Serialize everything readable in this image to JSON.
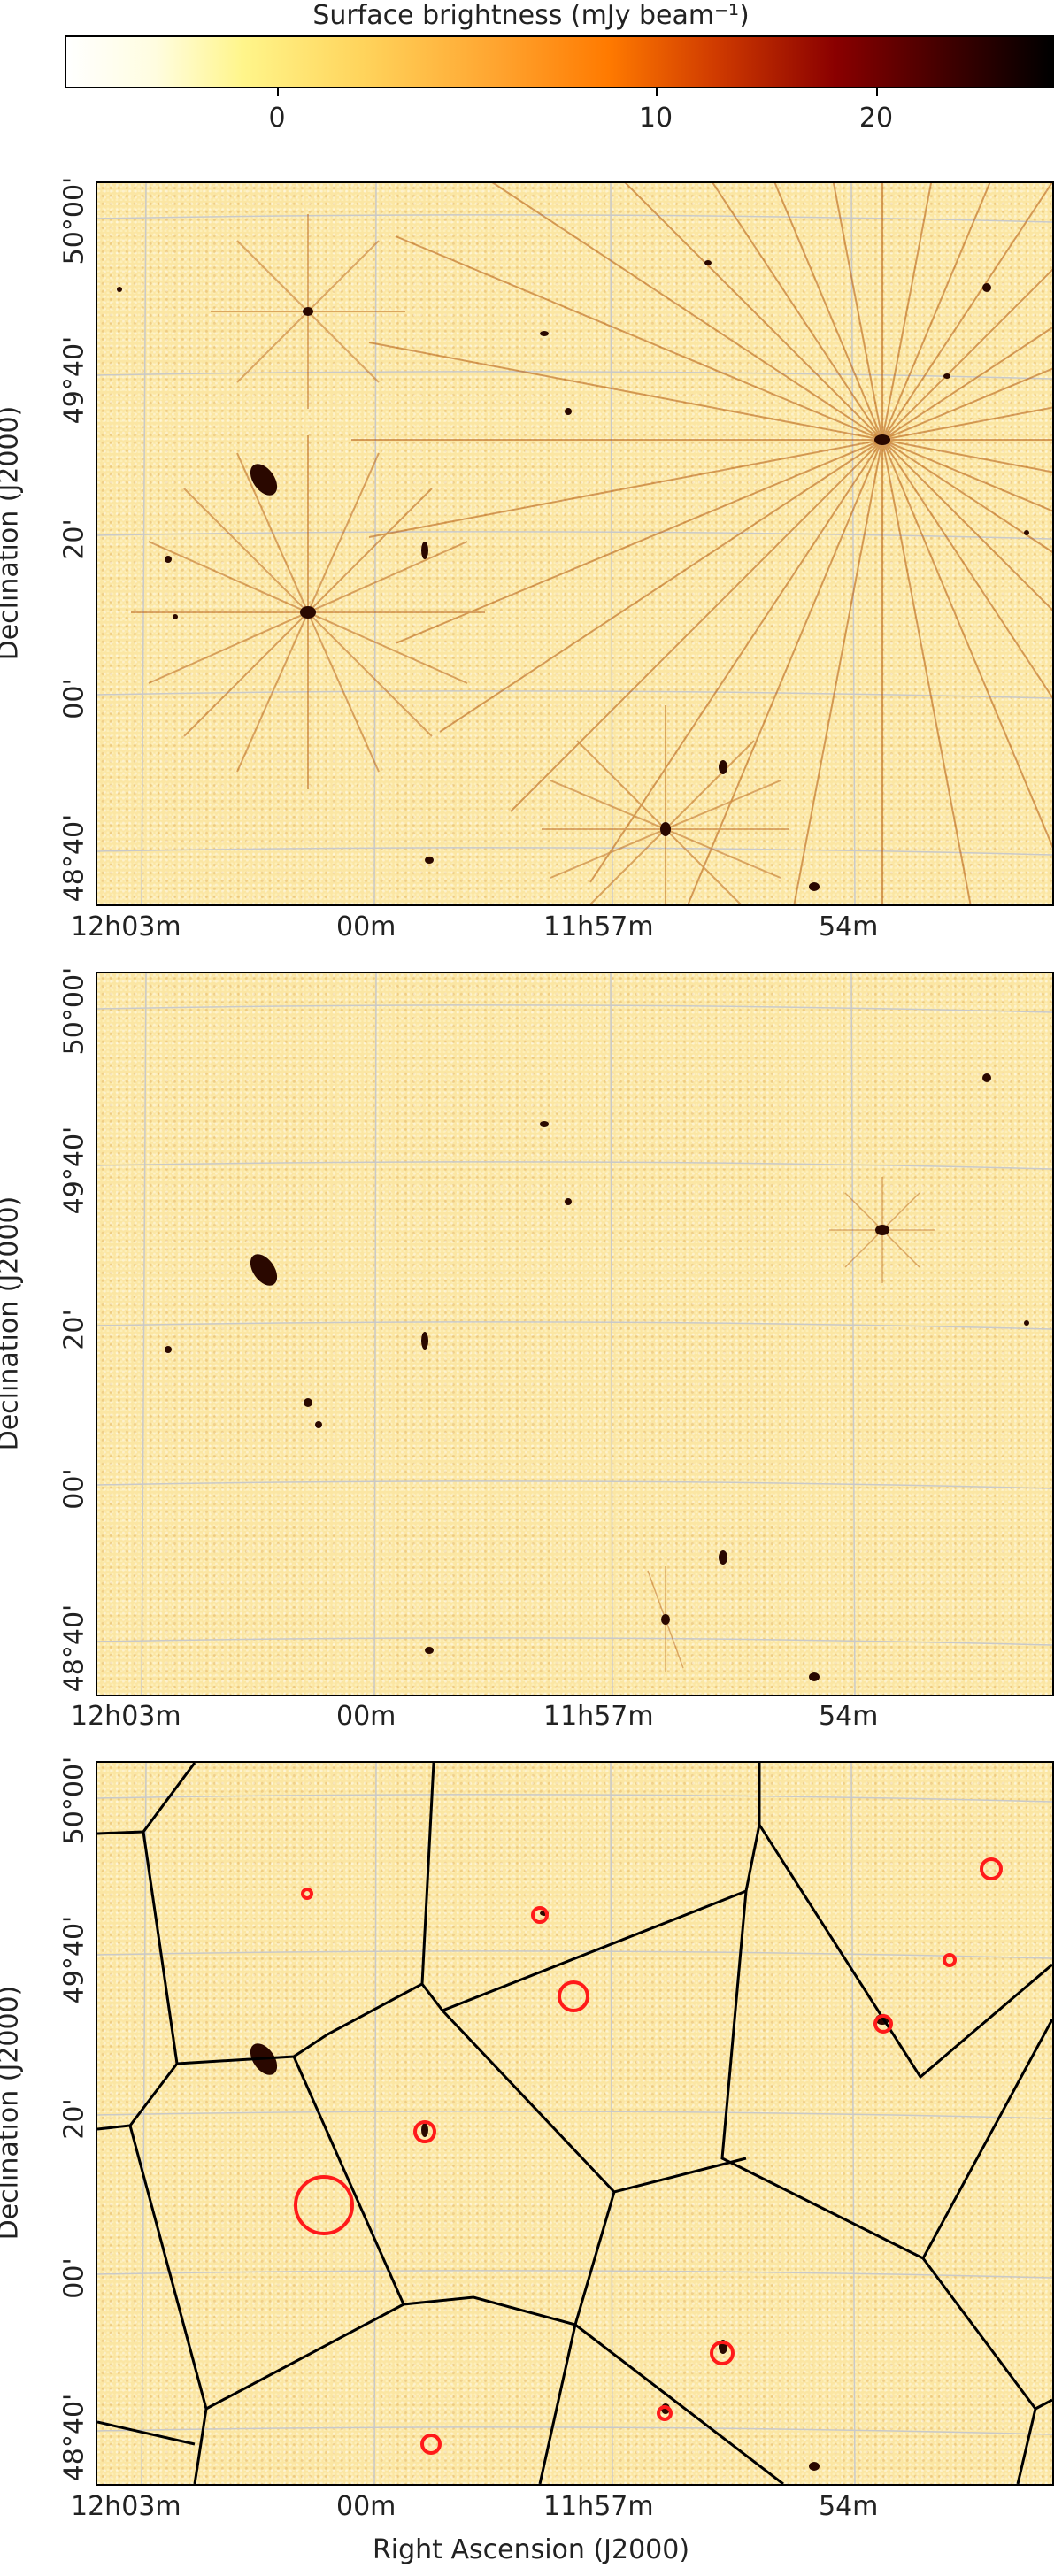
{
  "colorbar": {
    "label": "Surface brightness (mJy beam⁻¹)",
    "ticks": [
      "0",
      "10",
      "20"
    ],
    "tick_values": [
      0,
      10,
      20
    ],
    "colormap": "afmhot_r"
  },
  "axes": {
    "ylabel": "Declination (J2000)",
    "xlabel": "Right Ascension (J2000)",
    "yticks": [
      "50°00'",
      "49°40'",
      "20'",
      "00'",
      "48°40'"
    ],
    "xticks": [
      "12h03m",
      "00m",
      "11h57m",
      "54m"
    ]
  },
  "panels": [
    {
      "id": "top",
      "description_colors": {
        "background": "#fbe6a3",
        "sources": "#3a0a00"
      }
    },
    {
      "id": "middle"
    },
    {
      "id": "bottom",
      "facet_lines_color": "#000000",
      "circle_color": "#ff0000"
    }
  ]
}
